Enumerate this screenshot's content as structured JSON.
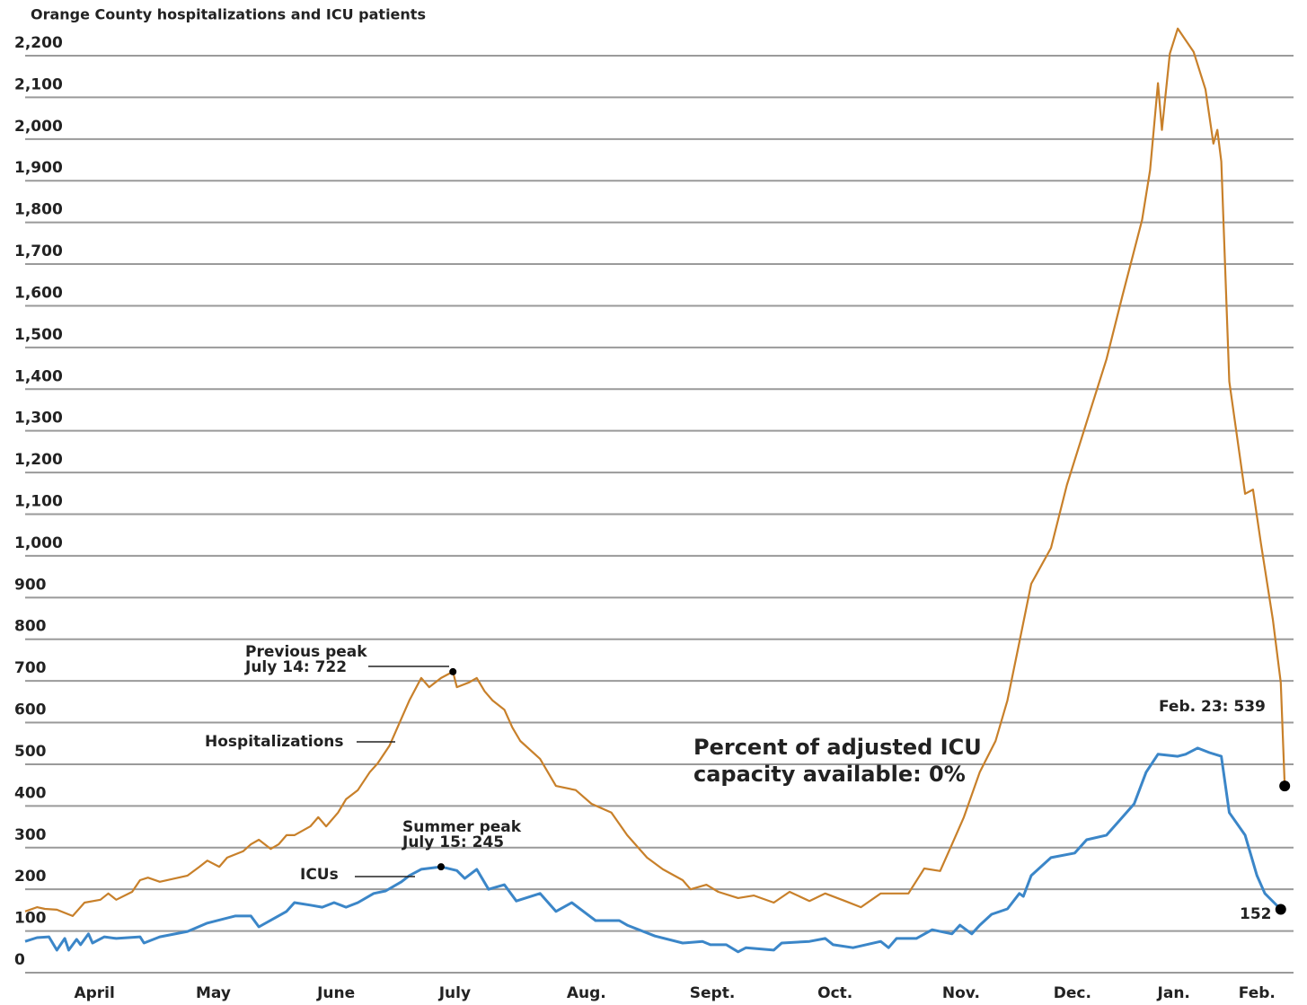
{
  "chart_data": {
    "type": "line",
    "title": "Orange County hospitalizations and ICU patients",
    "xlim": [
      0,
      320
    ],
    "xticks": [
      {
        "value": 17.5,
        "label": "April"
      },
      {
        "value": 47.5,
        "label": "May"
      },
      {
        "value": 78.5,
        "label": "June"
      },
      {
        "value": 108.5,
        "label": "July"
      },
      {
        "value": 141.7,
        "label": "Aug."
      },
      {
        "value": 173.5,
        "label": "Sept."
      },
      {
        "value": 204.5,
        "label": "Oct."
      },
      {
        "value": 236.3,
        "label": "Nov."
      },
      {
        "value": 264.4,
        "label": "Dec."
      },
      {
        "value": 290,
        "label": "Jan."
      },
      {
        "value": 311,
        "label": "Feb."
      }
    ],
    "ylim": [
      0,
      2200
    ],
    "yticks": [
      0,
      100,
      200,
      300,
      400,
      500,
      600,
      700,
      800,
      900,
      {
        "value": 1000,
        "label": "1,000"
      },
      {
        "value": 1100,
        "label": "1,100"
      },
      {
        "value": 1200,
        "label": "1,200"
      },
      {
        "value": 1300,
        "label": "1,300"
      },
      {
        "value": 1400,
        "label": "1,400"
      },
      {
        "value": 1500,
        "label": "1,500"
      },
      {
        "value": 1600,
        "label": "1,600"
      },
      {
        "value": 1700,
        "label": "1,700"
      },
      {
        "value": 1800,
        "label": "1,800"
      },
      {
        "value": 1900,
        "label": "1,900"
      },
      {
        "value": 2000,
        "label": "2,000"
      },
      {
        "value": 2100,
        "label": "2,100"
      },
      {
        "value": 2200,
        "label": "2,200"
      }
    ],
    "grid": true,
    "series": [
      {
        "name": "Hospitalizations",
        "color": "#c8802a",
        "x": [
          0,
          3,
          5,
          8,
          12,
          15,
          19,
          21,
          23,
          27,
          29,
          31,
          34,
          41,
          44,
          46,
          49,
          51,
          55,
          57,
          59,
          62,
          64,
          66,
          68,
          72,
          74,
          76,
          79,
          81,
          84,
          87,
          89,
          92,
          95,
          97,
          100,
          102,
          105,
          108,
          109,
          112,
          114,
          116,
          118,
          121,
          123,
          125,
          130,
          134,
          139,
          143,
          148,
          152,
          157,
          161,
          166,
          168,
          172,
          175,
          180,
          184,
          189,
          193,
          198,
          202,
          207,
          211,
          216,
          223,
          227,
          231,
          234,
          237,
          241,
          245,
          248,
          251,
          254,
          259,
          263,
          268,
          273,
          277,
          282,
          284,
          286,
          287,
          289,
          291,
          295,
          298,
          300,
          301,
          302,
          304,
          308,
          310,
          312,
          315,
          317,
          318
        ],
        "values": [
          147,
          157,
          153,
          151,
          136,
          168,
          175,
          190,
          175,
          194,
          222,
          228,
          218,
          233,
          254,
          269,
          254,
          276,
          291,
          308,
          319,
          297,
          308,
          330,
          330,
          351,
          373,
          351,
          384,
          416,
          438,
          481,
          502,
          545,
          610,
          653,
          707,
          685,
          707,
          722,
          685,
          696,
          707,
          675,
          653,
          631,
          588,
          556,
          513,
          448,
          438,
          405,
          384,
          330,
          276,
          248,
          222,
          200,
          211,
          194,
          179,
          185,
          168,
          194,
          172,
          190,
          172,
          157,
          190,
          190,
          250,
          244,
          308,
          373,
          481,
          556,
          653,
          793,
          933,
          1019,
          1170,
          1321,
          1472,
          1623,
          1806,
          1925,
          2134,
          2022,
          2205,
          2265,
          2209,
          2119,
          1989,
          2022,
          1946,
          1418,
          1149,
          1159,
          1030,
          847,
          696,
          448
        ]
      },
      {
        "name": "ICUs",
        "color": "#3b86c8",
        "x": [
          0,
          3,
          6,
          8,
          10,
          11,
          13,
          14,
          16,
          17,
          20,
          23,
          29,
          30,
          34,
          41,
          46,
          53,
          57,
          59,
          63,
          66,
          68,
          72,
          75,
          78,
          81,
          84,
          88,
          91,
          95,
          97,
          100,
          105,
          109,
          111,
          114,
          117,
          121,
          124,
          130,
          134,
          138,
          144,
          150,
          152,
          159,
          166,
          171,
          173,
          177,
          180,
          182,
          189,
          191,
          198,
          202,
          204,
          209,
          216,
          218,
          220,
          225,
          229,
          234,
          236,
          239,
          241,
          244,
          248,
          251,
          252,
          254,
          259,
          265,
          268,
          273,
          276,
          280,
          283,
          286,
          291,
          293,
          296,
          299,
          302,
          304,
          308,
          311,
          313,
          317
        ],
        "values": [
          75,
          84,
          86,
          54,
          82,
          54,
          80,
          67,
          93,
          71,
          86,
          82,
          86,
          71,
          86,
          99,
          119,
          136,
          136,
          110,
          131,
          147,
          168,
          162,
          157,
          168,
          157,
          168,
          190,
          196,
          218,
          233,
          248,
          254,
          245,
          226,
          248,
          200,
          211,
          172,
          190,
          147,
          168,
          125,
          125,
          114,
          88,
          71,
          75,
          67,
          67,
          50,
          60,
          54,
          71,
          75,
          82,
          67,
          60,
          75,
          60,
          82,
          82,
          103,
          93,
          114,
          93,
          114,
          140,
          153,
          190,
          183,
          233,
          276,
          287,
          319,
          330,
          362,
          405,
          481,
          524,
          519,
          524,
          539,
          528,
          519,
          384,
          330,
          233,
          190,
          152
        ]
      }
    ],
    "annotations": [
      {
        "lines": [
          "Previous peak",
          "July 14: 722"
        ]
      },
      {
        "lines": [
          "Hospitalizations"
        ]
      },
      {
        "lines": [
          "Summer peak",
          "July 15: 245"
        ]
      },
      {
        "lines": [
          "ICUs"
        ]
      },
      {
        "lines": [
          "Percent of adjusted ICU",
          "capacity available: 0%"
        ]
      },
      {
        "lines": [
          "Feb. 23: 539"
        ]
      },
      {
        "lines": [
          "152"
        ]
      }
    ]
  }
}
